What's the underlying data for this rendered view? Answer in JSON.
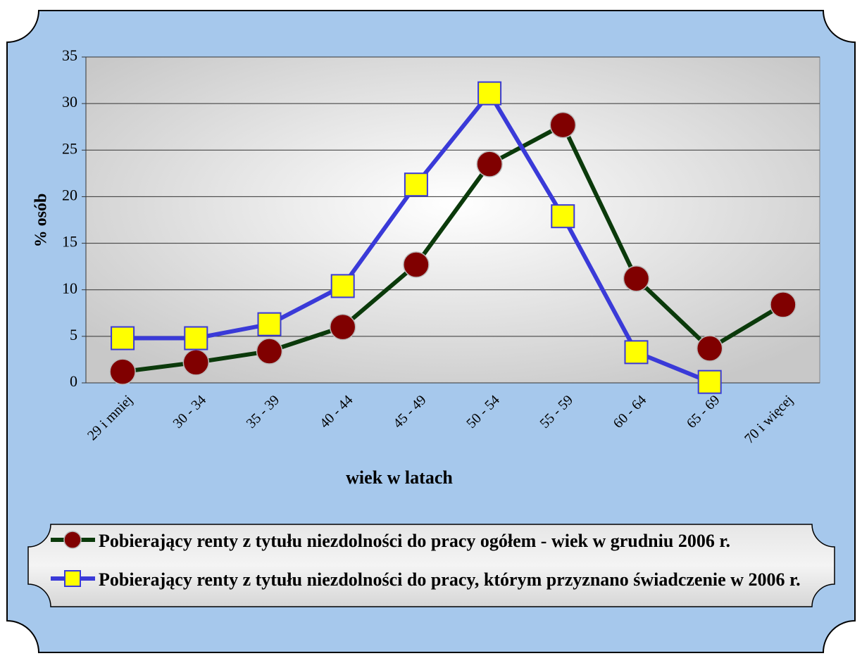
{
  "chart_data": {
    "type": "line",
    "x_label": "wiek w latach",
    "y_label": "% osób",
    "categories": [
      "29 i mniej",
      "30 - 34",
      "35 - 39",
      "40 - 44",
      "45 - 49",
      "50 - 54",
      "55 - 59",
      "60 - 64",
      "65 - 69",
      "70 i więcej"
    ],
    "series": [
      {
        "name": "Pobierający renty z tytułu niezdolności do pracy ogółem - wiek w grudniu 2006 r.",
        "color": "#0b3a0b",
        "marker": "circle",
        "marker_color": "#800000",
        "values": [
          1.2,
          2.2,
          3.4,
          6.0,
          12.7,
          23.5,
          27.7,
          11.2,
          3.7,
          8.4
        ]
      },
      {
        "name": "Pobierający renty z tytułu niezdolności do pracy, którym przyznano świadczenie w 2006 r.",
        "color": "#3a3ad8",
        "marker": "square",
        "marker_color": "#ffff00",
        "values": [
          4.8,
          4.8,
          6.3,
          10.4,
          21.3,
          31.1,
          17.9,
          3.3,
          0.1,
          null
        ]
      }
    ],
    "ylim": [
      0,
      35
    ],
    "yticks": [
      0,
      5,
      10,
      15,
      20,
      25,
      30,
      35
    ],
    "grid": true
  }
}
